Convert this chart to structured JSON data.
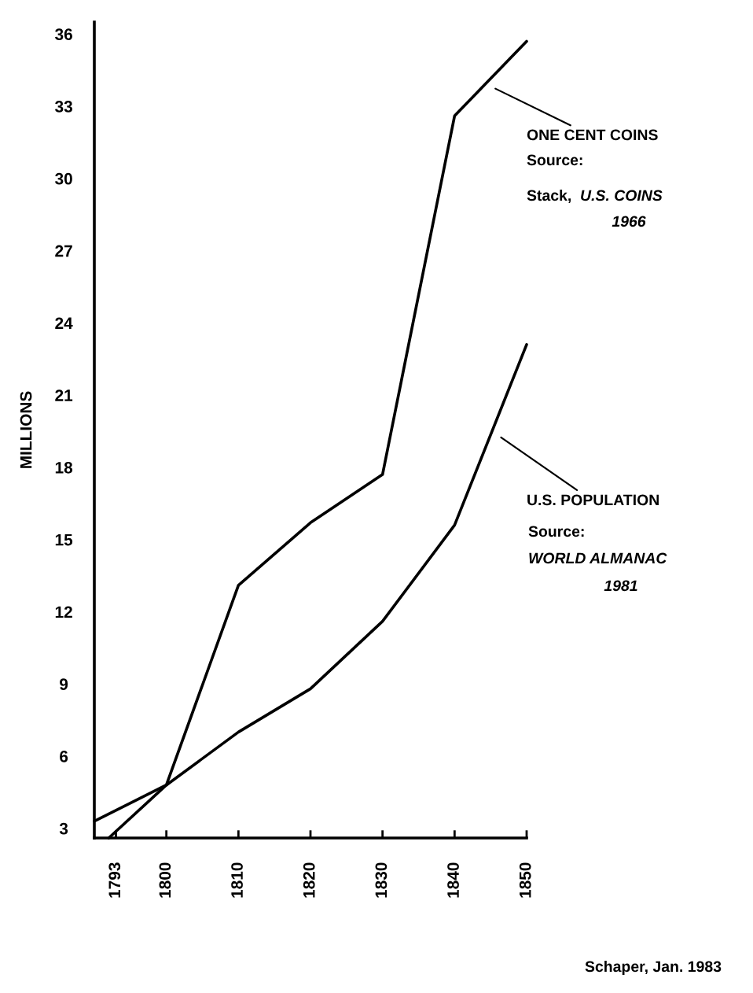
{
  "chart_data": {
    "type": "line",
    "ylabel": "MILLIONS",
    "xlim": [
      1790,
      1850
    ],
    "xticks": [
      1793,
      1800,
      1810,
      1820,
      1830,
      1840,
      1850
    ],
    "ylim": [
      2.6,
      36.5
    ],
    "yticks": [
      3,
      6,
      9,
      12,
      15,
      18,
      21,
      24,
      27,
      30,
      33,
      36
    ],
    "grid": false,
    "legend": false,
    "marker": "none",
    "line_style": "solid",
    "series": [
      {
        "name": "ONE CENT COINS",
        "color": "#000000",
        "x": [
          1792,
          1800,
          1810,
          1820,
          1830,
          1840,
          1850
        ],
        "values": [
          2.6,
          4.8,
          13.1,
          15.7,
          17.7,
          32.6,
          35.7
        ]
      },
      {
        "name": "U.S. POPULATION",
        "color": "#000000",
        "x": [
          1790,
          1800,
          1810,
          1820,
          1830,
          1840,
          1850
        ],
        "values": [
          3.3,
          4.8,
          7.0,
          8.8,
          11.6,
          15.6,
          23.1
        ]
      }
    ],
    "annotations": [
      "Source:",
      "Stack,",
      "U.S. COINS",
      "1966",
      "Source:",
      "WORLD ALMANAC",
      "1981",
      "Schaper, Jan. 1983"
    ]
  }
}
